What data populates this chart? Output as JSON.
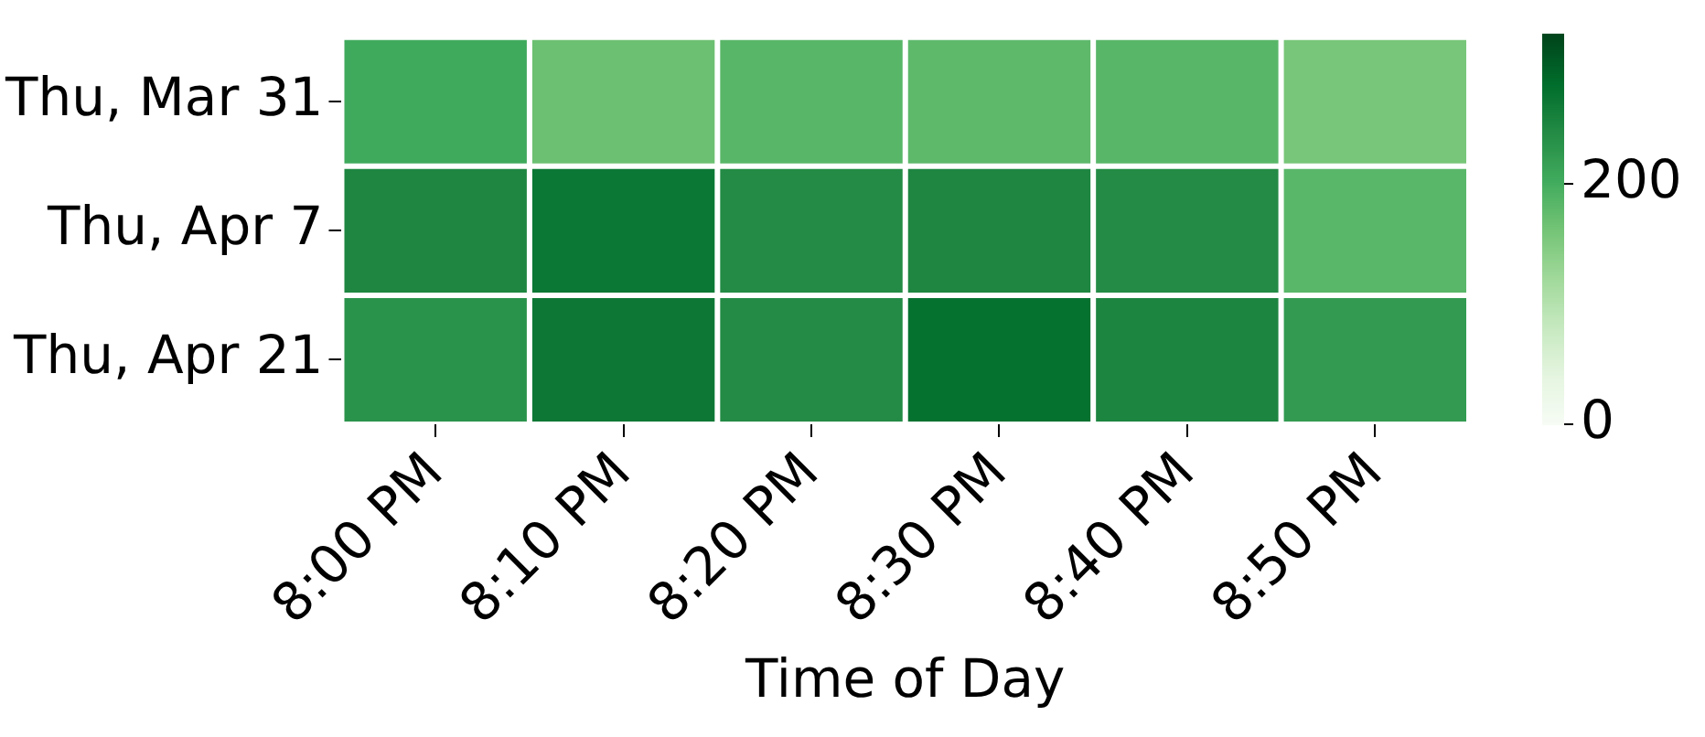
{
  "chart_data": {
    "type": "heatmap",
    "xlabel": "Time of Day",
    "categories": [
      "8:00 PM",
      "8:10 PM",
      "8:20 PM",
      "8:30 PM",
      "8:40 PM",
      "8:50 PM"
    ],
    "y_categories": [
      "Thu, Mar 31",
      "Thu, Apr 7",
      "Thu, Apr 21"
    ],
    "cells": [
      [
        205,
        169,
        185,
        180,
        185,
        159
      ],
      [
        250,
        270,
        244,
        250,
        244,
        184
      ],
      [
        234,
        269,
        244,
        278,
        252,
        224
      ]
    ],
    "clim": [
      0,
      325
    ],
    "cticks": [
      0,
      200
    ]
  }
}
